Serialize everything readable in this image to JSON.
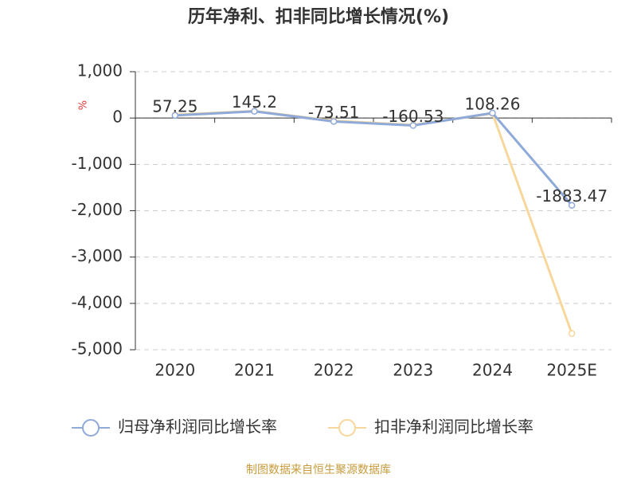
{
  "chart_data": {
    "type": "line",
    "title": "历年净利、扣非同比增长情况(%)",
    "y_unit": "%",
    "categories": [
      "2020",
      "2021",
      "2022",
      "2023",
      "2024",
      "2025E"
    ],
    "series": [
      {
        "name": "归母净利润同比增长率",
        "color": "#8fa9d9",
        "values": [
          57.25,
          145.2,
          -73.51,
          -160.53,
          108.26,
          -1883.47
        ],
        "show_labels": true
      },
      {
        "name": "扣非净利润同比增长率",
        "color": "#f7d79b",
        "values": [
          70,
          150,
          -60,
          -150,
          100,
          -4650
        ],
        "show_labels": false
      }
    ],
    "ylim": [
      -5000,
      1000
    ],
    "yticks": [
      {
        "value": -5000,
        "label": "-5,000"
      },
      {
        "value": -4000,
        "label": "-4,000"
      },
      {
        "value": -3000,
        "label": "-3,000"
      },
      {
        "value": -2000,
        "label": "-2,000"
      },
      {
        "value": -1000,
        "label": "-1,000"
      },
      0,
      {
        "value": 1000,
        "label": "1,000"
      }
    ],
    "grid": true,
    "legend": "bottom",
    "source": "制图数据来自恒生聚源数据库"
  }
}
